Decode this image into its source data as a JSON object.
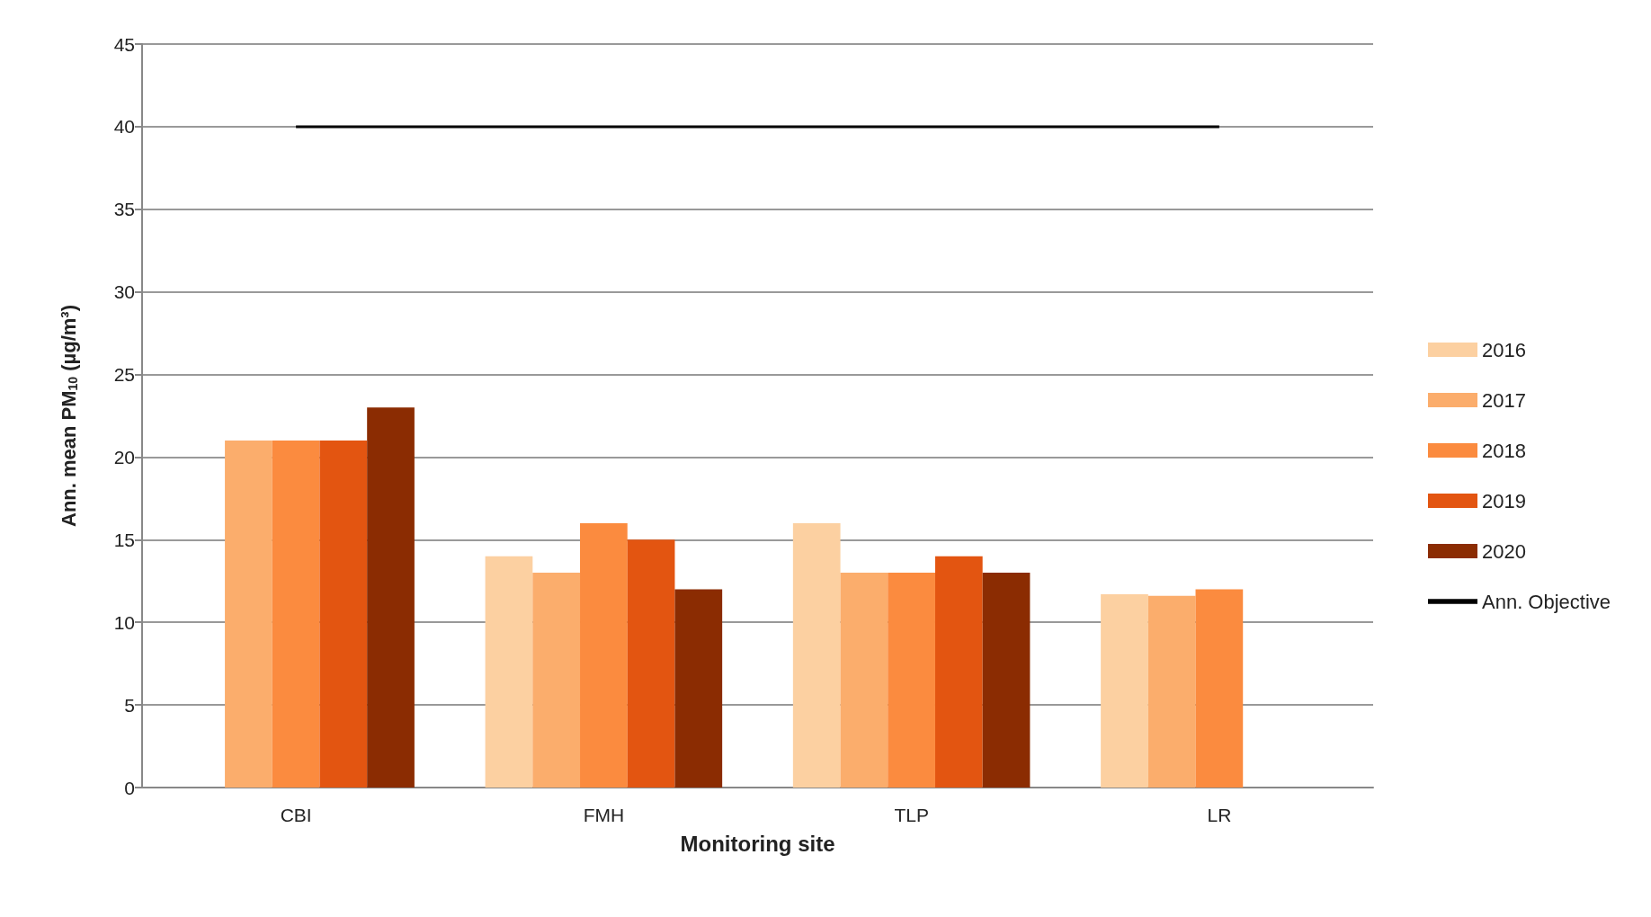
{
  "chart_data": {
    "type": "bar",
    "xlabel": "Monitoring site",
    "ylabel": "Ann. mean PM$_{10}$ (µg/m³)",
    "categories": [
      "CBI",
      "FMH",
      "TLP",
      "LR"
    ],
    "series": [
      {
        "name": "2016",
        "color": "#fcd0a1",
        "values": [
          null,
          14,
          16,
          11.7
        ]
      },
      {
        "name": "2017",
        "color": "#fbad6c",
        "values": [
          21,
          13,
          13,
          11.6
        ]
      },
      {
        "name": "2018",
        "color": "#fb8b3f",
        "values": [
          21,
          16,
          13,
          12
        ]
      },
      {
        "name": "2019",
        "color": "#e35511",
        "values": [
          21,
          15,
          14,
          null
        ]
      },
      {
        "name": "2020",
        "color": "#8b2c02",
        "values": [
          23,
          12,
          13,
          null
        ]
      },
      {
        "name": "Ann. Objective",
        "color": "#000000",
        "type": "line",
        "marker": "none",
        "values": [
          40,
          40,
          40,
          40
        ]
      }
    ],
    "ylim": [
      0,
      45
    ],
    "yticks": [
      0,
      5,
      10,
      15,
      20,
      25,
      30,
      35,
      40,
      45
    ],
    "grid": "y",
    "legend": "right"
  }
}
